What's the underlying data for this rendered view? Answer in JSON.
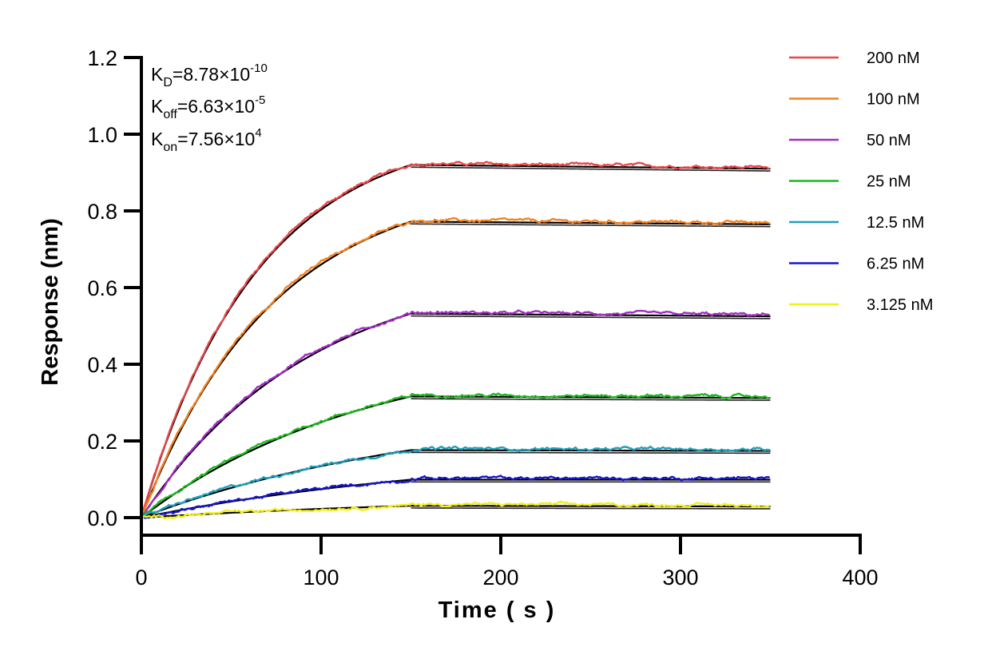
{
  "chart_data": {
    "type": "line",
    "title": "",
    "xlabel": "Time ( s )",
    "ylabel": "Response (nm)",
    "xlim": [
      0,
      400
    ],
    "ylim": [
      0,
      1.2
    ],
    "x_ticks": [
      "0",
      "100",
      "200",
      "300",
      "400"
    ],
    "y_ticks": [
      "0.0",
      "0.2",
      "0.4",
      "0.6",
      "0.8",
      "1.0",
      "1.2"
    ],
    "grid": false,
    "legend_position": "top-right",
    "association_end_s": 150,
    "data_end_s": 350,
    "fit_color": "#000000",
    "kinetics": {
      "kd": {
        "base": "K",
        "sub": "D",
        "value": "=8.78×10",
        "exp": "-10"
      },
      "koff": {
        "base": "K",
        "sub": "off",
        "value": "=6.63×10",
        "exp": "-5"
      },
      "kon": {
        "base": "K",
        "sub": "on",
        "value": "=7.56×10",
        "exp": "4"
      }
    },
    "series": [
      {
        "name": "200 nM",
        "color": "#e8474a",
        "plateau": 0.92,
        "final": 0.91
      },
      {
        "name": "100 nM",
        "color": "#f5821f",
        "plateau": 0.772,
        "final": 0.765
      },
      {
        "name": "50 nM",
        "color": "#a12fc2",
        "plateau": 0.532,
        "final": 0.525
      },
      {
        "name": "25 nM",
        "color": "#1fb51f",
        "plateau": 0.316,
        "final": 0.312
      },
      {
        "name": "12.5 nM",
        "color": "#1e9fb8",
        "plateau": 0.176,
        "final": 0.174
      },
      {
        "name": "6.25 nM",
        "color": "#1616c8",
        "plateau": 0.099,
        "final": 0.099
      },
      {
        "name": "3.125 nM",
        "color": "#f2ef1a",
        "plateau": 0.031,
        "final": 0.029
      }
    ]
  }
}
